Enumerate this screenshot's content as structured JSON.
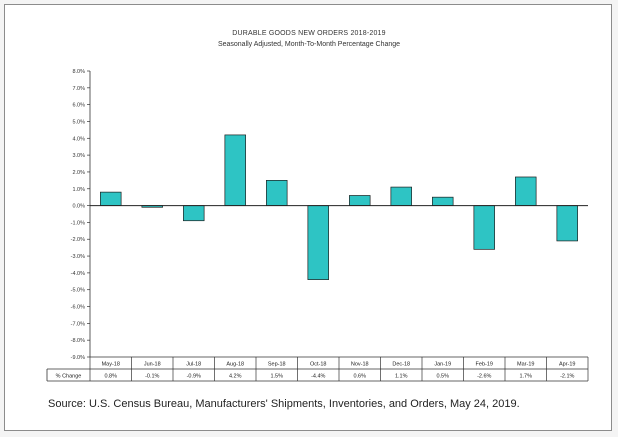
{
  "chart_data": {
    "type": "bar",
    "title": "DURABLE GOODS NEW ORDERS 2018-2019",
    "subtitle": "Seasonally Adjusted, Month-To-Month Percentage Change",
    "categories": [
      "May-18",
      "Jun-18",
      "Jul-18",
      "Aug-18",
      "Sep-18",
      "Oct-18",
      "Nov-18",
      "Dec-18",
      "Jan-19",
      "Feb-19",
      "Mar-19",
      "Apr-19"
    ],
    "series": [
      {
        "name": "% Change",
        "values": [
          0.8,
          -0.1,
          -0.9,
          4.2,
          1.5,
          -4.4,
          0.6,
          1.1,
          0.5,
          -2.6,
          1.7,
          -2.1
        ]
      }
    ],
    "data_labels": [
      "0.8%",
      "-0.1%",
      "-0.9%",
      "4.2%",
      "1.5%",
      "-4.4%",
      "0.6%",
      "1.1%",
      "0.5%",
      "-2.6%",
      "1.7%",
      "-2.1%"
    ],
    "row_label": "% Change",
    "yticks": [
      "8.0%",
      "7.0%",
      "6.0%",
      "5.0%",
      "4.0%",
      "3.0%",
      "2.0%",
      "1.0%",
      "0.0%",
      "-1.0%",
      "-2.0%",
      "-3.0%",
      "-4.0%",
      "-5.0%",
      "-6.0%",
      "-7.0%",
      "-8.0%",
      "-9.0%"
    ],
    "ylim": [
      -9,
      8
    ],
    "grid": false,
    "bar_color": "#2ec4c4",
    "bar_edge_color": "#1e1e1e"
  },
  "source": "Source: U.S. Census Bureau, Manufacturers' Shipments, Inventories, and Orders, May 24, 2019."
}
